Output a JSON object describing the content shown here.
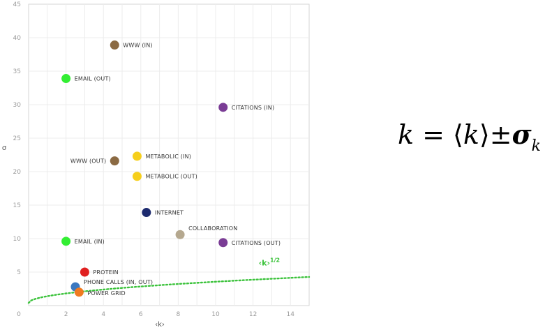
{
  "chart_data": {
    "type": "scatter",
    "xlabel": "‹k›",
    "ylabel": "σ",
    "xlim": [
      0,
      15
    ],
    "ylim": [
      0,
      45
    ],
    "x_ticks": [
      0,
      2,
      4,
      6,
      8,
      10,
      12,
      14
    ],
    "y_ticks": [
      5,
      10,
      15,
      20,
      25,
      30,
      35,
      40,
      45
    ],
    "grid": true,
    "points": [
      {
        "label": "WWW (IN)",
        "x": 4.6,
        "y": 38.9,
        "color": "#8b6a43"
      },
      {
        "label": "EMAIL (OUT)",
        "x": 2.0,
        "y": 33.9,
        "color": "#33ee33"
      },
      {
        "label": "CITATIONS (IN)",
        "x": 10.4,
        "y": 29.6,
        "color": "#7a3c95"
      },
      {
        "label": "METABOLIC (IN)",
        "x": 5.8,
        "y": 22.3,
        "color": "#f6cf1c"
      },
      {
        "label": "WWW (OUT)",
        "x": 4.6,
        "y": 21.6,
        "color": "#8b6a43"
      },
      {
        "label": "METABOLIC (OUT)",
        "x": 5.8,
        "y": 19.3,
        "color": "#f6cf1c"
      },
      {
        "label": "INTERNET",
        "x": 6.3,
        "y": 13.9,
        "color": "#1c2a6e"
      },
      {
        "label": "COLLABORATION",
        "x": 8.1,
        "y": 10.6,
        "color": "#b5a88f"
      },
      {
        "label": "EMAIL (IN)",
        "x": 2.0,
        "y": 9.6,
        "color": "#33ee33"
      },
      {
        "label": "CITATIONS (OUT)",
        "x": 10.4,
        "y": 9.4,
        "color": "#7a3c95"
      },
      {
        "label": "PROTEIN",
        "x": 3.0,
        "y": 5.0,
        "color": "#e02020"
      },
      {
        "label": "PHONE CALLS (IN, OUT)",
        "x": 2.5,
        "y": 2.8,
        "color": "#3a78c0"
      },
      {
        "label": "POWER GRID",
        "x": 2.7,
        "y": 2.0,
        "color": "#f07a20"
      }
    ],
    "curve": {
      "label": "‹k›",
      "label_sup": "1/2",
      "formula": "sqrt",
      "color": "#3ac23a",
      "style": "dotted"
    }
  },
  "formula": {
    "k": "k",
    "eq": " = ",
    "open": "⟨",
    "mid": "k",
    "close": "⟩",
    "pm": "±",
    "sigma": "σ",
    "sub": "k"
  }
}
